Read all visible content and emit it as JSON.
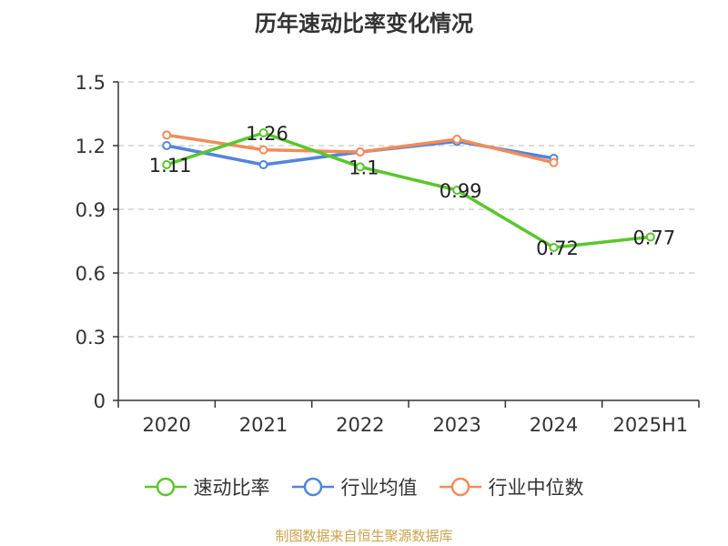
{
  "title": "历年速动比率变化情况",
  "source": "制图数据来自恒生聚源数据库",
  "chart_data": {
    "type": "line",
    "title": "历年速动比率变化情况",
    "xlabel": "",
    "ylabel": "",
    "categories": [
      "2020",
      "2021",
      "2022",
      "2023",
      "2024",
      "2025H1"
    ],
    "ylim": [
      0,
      1.5
    ],
    "yticks": [
      "0",
      "0.3",
      "0.6",
      "0.9",
      "1.2",
      "1.5"
    ],
    "grid": true,
    "legend": "bottom",
    "series": [
      {
        "name": "速动比率",
        "color": "#5ac62e",
        "values": [
          1.11,
          1.26,
          1.1,
          0.99,
          0.72,
          0.77
        ],
        "labels": [
          "1.11",
          "1.26",
          "1.1",
          "0.99",
          "0.72",
          "0.77"
        ]
      },
      {
        "name": "行业均值",
        "color": "#5284dc",
        "values": [
          1.2,
          1.11,
          1.17,
          1.22,
          1.14,
          null
        ]
      },
      {
        "name": "行业中位数",
        "color": "#f28c5a",
        "values": [
          1.25,
          1.18,
          1.17,
          1.23,
          1.12,
          null
        ]
      }
    ]
  }
}
